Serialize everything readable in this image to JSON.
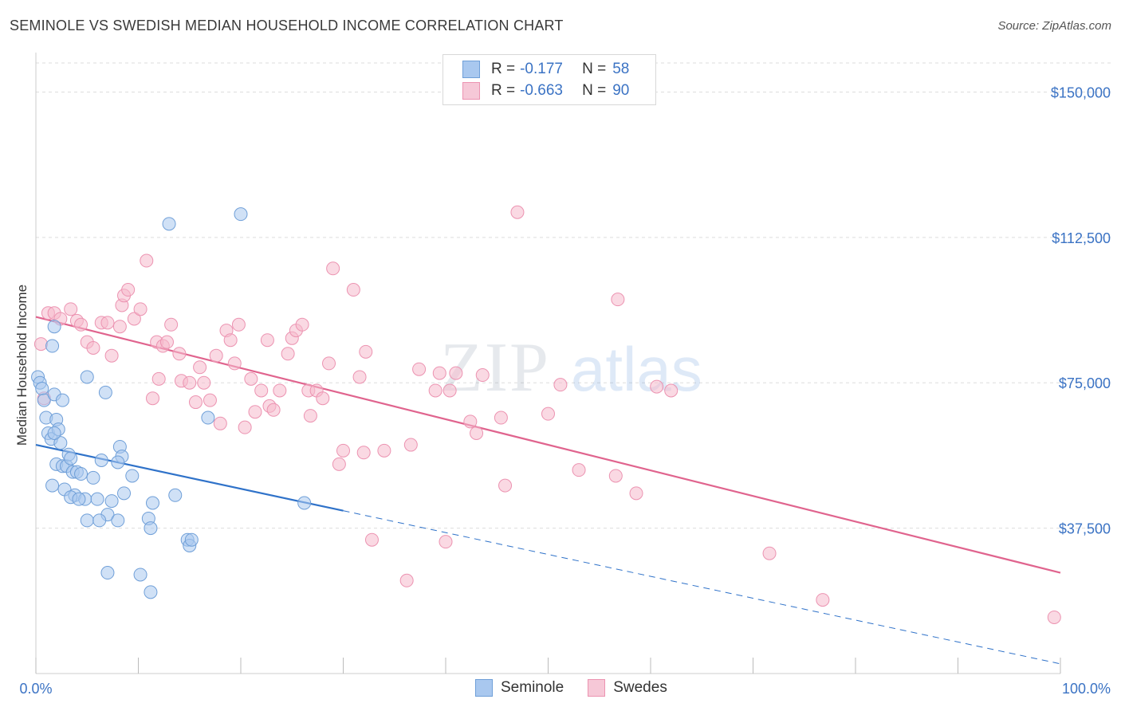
{
  "title": "SEMINOLE VS SWEDISH MEDIAN HOUSEHOLD INCOME CORRELATION CHART",
  "source": "Source: ZipAtlas.com",
  "watermark": {
    "zip": "ZIP",
    "atlas": "atlas"
  },
  "legend": {
    "rows": [
      {
        "r_label": "R =",
        "r_value": "-0.177",
        "n_label": "N =",
        "n_value": "58"
      },
      {
        "r_label": "R =",
        "r_value": "-0.663",
        "n_label": "N =",
        "n_value": "90"
      }
    ]
  },
  "bottom_legend": {
    "seminole": "Seminole",
    "swedes": "Swedes"
  },
  "colors": {
    "seminole_fill": "#a9c8ef",
    "seminole_stroke": "#6f9fd8",
    "seminole_line": "#2f72c9",
    "swedes_fill": "#f6b9cc",
    "swedes_stroke": "#ec93b1",
    "swedes_line": "#e0648e",
    "axis_text": "#3b73c4",
    "grid": "#dddddd"
  },
  "chart_data": {
    "type": "scatter",
    "title": "SEMINOLE VS SWEDISH MEDIAN HOUSEHOLD INCOME CORRELATION CHART",
    "xlabel": "",
    "ylabel": "Median Household Income",
    "xlim": [
      0,
      100
    ],
    "ylim": [
      0,
      157500
    ],
    "x_tick_labels": [
      "0.0%",
      "100.0%"
    ],
    "y_ticks": [
      37500,
      75000,
      112500,
      150000
    ],
    "y_tick_labels": [
      "$37,500",
      "$75,000",
      "$112,500",
      "$150,000"
    ],
    "series": [
      {
        "name": "Seminole",
        "r": -0.177,
        "n": 58,
        "trend": {
          "x0": 0,
          "y0": 59000,
          "x1": 30,
          "y1": 42000,
          "dashed_to_x": 100,
          "dashed_to_y": 2500
        },
        "points": [
          [
            0.2,
            76500
          ],
          [
            0.4,
            75000
          ],
          [
            0.6,
            73500
          ],
          [
            0.8,
            70500
          ],
          [
            1,
            66000
          ],
          [
            1.2,
            62000
          ],
          [
            1.5,
            60500
          ],
          [
            2,
            65500
          ],
          [
            2.2,
            63000
          ],
          [
            1.8,
            72000
          ],
          [
            2.4,
            59500
          ],
          [
            2,
            54000
          ],
          [
            2.6,
            53500
          ],
          [
            3,
            53500
          ],
          [
            3.2,
            56500
          ],
          [
            2.8,
            47500
          ],
          [
            1.6,
            48500
          ],
          [
            3.4,
            55500
          ],
          [
            3.6,
            52000
          ],
          [
            4,
            52000
          ],
          [
            4.4,
            51500
          ],
          [
            3.8,
            46000
          ],
          [
            4.8,
            45000
          ],
          [
            3.4,
            45500
          ],
          [
            4.2,
            45000
          ],
          [
            5.6,
            50500
          ],
          [
            6.4,
            55000
          ],
          [
            6,
            45000
          ],
          [
            7,
            41000
          ],
          [
            5,
            39500
          ],
          [
            6.2,
            39500
          ],
          [
            7.4,
            44500
          ],
          [
            8,
            39500
          ],
          [
            8.6,
            46500
          ],
          [
            8.2,
            58500
          ],
          [
            8.4,
            56000
          ],
          [
            8,
            54500
          ],
          [
            9.4,
            51000
          ],
          [
            11,
            40000
          ],
          [
            11.4,
            44000
          ],
          [
            11.2,
            37500
          ],
          [
            13.6,
            46000
          ],
          [
            14.8,
            34500
          ],
          [
            15,
            33000
          ],
          [
            15.2,
            34500
          ],
          [
            7,
            26000
          ],
          [
            10.2,
            25500
          ],
          [
            11.2,
            21000
          ],
          [
            1.8,
            89500
          ],
          [
            1.6,
            84500
          ],
          [
            5,
            76500
          ],
          [
            6.8,
            72500
          ],
          [
            16.8,
            66000
          ],
          [
            26.2,
            44000
          ],
          [
            13,
            116000
          ],
          [
            20,
            118500
          ],
          [
            2.6,
            70500
          ],
          [
            1.8,
            62000
          ]
        ]
      },
      {
        "name": "Swedes",
        "r": -0.663,
        "n": 90,
        "trend": {
          "x0": 0,
          "y0": 92000,
          "x1": 100,
          "y1": 26000
        },
        "points": [
          [
            0.5,
            85000
          ],
          [
            0.8,
            71000
          ],
          [
            1.2,
            93000
          ],
          [
            1.8,
            93000
          ],
          [
            2.4,
            91500
          ],
          [
            3.4,
            94000
          ],
          [
            4,
            91000
          ],
          [
            4.4,
            90000
          ],
          [
            5,
            85500
          ],
          [
            5.6,
            84000
          ],
          [
            6.4,
            90500
          ],
          [
            7,
            90500
          ],
          [
            7.4,
            82000
          ],
          [
            8.2,
            89500
          ],
          [
            8.4,
            95000
          ],
          [
            8.6,
            97500
          ],
          [
            9,
            99000
          ],
          [
            9.6,
            91500
          ],
          [
            10.2,
            94000
          ],
          [
            10.8,
            106500
          ],
          [
            11.4,
            71000
          ],
          [
            11.8,
            85500
          ],
          [
            12.4,
            84500
          ],
          [
            12.8,
            85500
          ],
          [
            13.2,
            90000
          ],
          [
            14,
            82500
          ],
          [
            14.2,
            75500
          ],
          [
            15,
            75000
          ],
          [
            15.6,
            70000
          ],
          [
            16,
            79000
          ],
          [
            16.4,
            75000
          ],
          [
            17,
            70500
          ],
          [
            17.6,
            82000
          ],
          [
            18,
            64500
          ],
          [
            18.6,
            88500
          ],
          [
            19,
            86000
          ],
          [
            19.4,
            80000
          ],
          [
            19.8,
            90000
          ],
          [
            20.4,
            63500
          ],
          [
            21,
            76000
          ],
          [
            21.4,
            67500
          ],
          [
            22,
            73000
          ],
          [
            22.6,
            86000
          ],
          [
            22.8,
            69000
          ],
          [
            23.2,
            68000
          ],
          [
            23.8,
            73000
          ],
          [
            24.6,
            82500
          ],
          [
            25,
            86500
          ],
          [
            25.4,
            88500
          ],
          [
            26,
            90000
          ],
          [
            26.6,
            73000
          ],
          [
            26.8,
            66500
          ],
          [
            27.4,
            73000
          ],
          [
            28,
            71000
          ],
          [
            28.6,
            80000
          ],
          [
            29,
            104500
          ],
          [
            29.6,
            54000
          ],
          [
            30,
            57500
          ],
          [
            31,
            99000
          ],
          [
            31.6,
            76500
          ],
          [
            32,
            57000
          ],
          [
            32.2,
            83000
          ],
          [
            32.8,
            34500
          ],
          [
            34,
            57500
          ],
          [
            36.2,
            24000
          ],
          [
            36.6,
            59000
          ],
          [
            37.4,
            78500
          ],
          [
            39,
            73000
          ],
          [
            39.4,
            77500
          ],
          [
            40,
            34000
          ],
          [
            40.4,
            73000
          ],
          [
            41,
            77500
          ],
          [
            42.4,
            65000
          ],
          [
            43,
            62000
          ],
          [
            43.6,
            77000
          ],
          [
            45.4,
            66000
          ],
          [
            45.8,
            48500
          ],
          [
            47,
            119000
          ],
          [
            50,
            67000
          ],
          [
            51.2,
            74500
          ],
          [
            53,
            52500
          ],
          [
            56.6,
            51000
          ],
          [
            56.8,
            96500
          ],
          [
            58.6,
            46500
          ],
          [
            60.6,
            74000
          ],
          [
            62,
            73000
          ],
          [
            71.6,
            31000
          ],
          [
            76.8,
            19000
          ],
          [
            99.4,
            14500
          ],
          [
            12,
            76000
          ]
        ]
      }
    ]
  }
}
